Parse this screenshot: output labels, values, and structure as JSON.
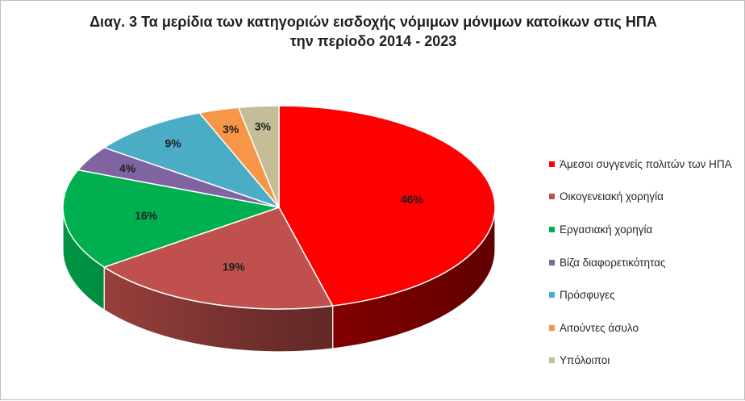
{
  "chart_data": {
    "type": "pie",
    "title_line1": "Διαγ. 3   Τα μερίδια των κατηγοριών εισδοχής νόμιμων μόνιμων κατοίκων στις ΗΠΑ",
    "title_line2": "την περίοδο 2014 - 2023",
    "legend_position": "right",
    "slices": [
      {
        "label": "Άμεσοι συγγενείς πολιτών των ΗΠΑ",
        "value": 46,
        "value_label": "46%",
        "color": "#ff0000"
      },
      {
        "label": "Οικογενειακή χορηγία",
        "value": 19,
        "value_label": "19%",
        "color": "#c0504d"
      },
      {
        "label": "Εργασιακή χορηγία",
        "value": 16,
        "value_label": "16%",
        "color": "#00b050"
      },
      {
        "label": "Βίζα διαφορετικότητας",
        "value": 4,
        "value_label": "4%",
        "color": "#8064a2"
      },
      {
        "label": "Πρόσφυγες",
        "value": 9,
        "value_label": "9%",
        "color": "#4bacc6"
      },
      {
        "label": "Αιτούντες άσυλο",
        "value": 3,
        "value_label": "3%",
        "color": "#f79646"
      },
      {
        "label": "Υπόλοιποι",
        "value": 3,
        "value_label": "3%",
        "color": "#c4bd97"
      }
    ]
  }
}
